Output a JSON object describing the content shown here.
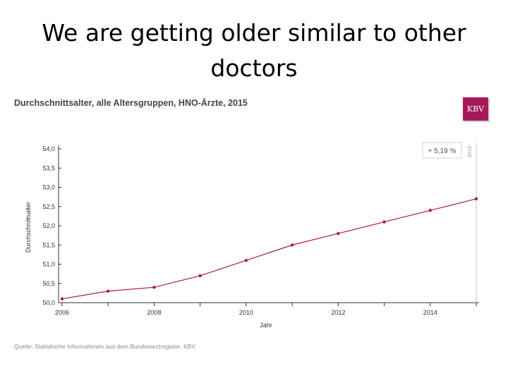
{
  "slide": {
    "title_line1": "We are getting older similar to other",
    "title_line2": "doctors"
  },
  "logo": {
    "text": "KBV",
    "color": "#a8195a"
  },
  "source": "Quelle: Statistische Informationen aus dem Bundesarztregister, KBV",
  "chart_data": {
    "type": "line",
    "title": "Durchschnittsalter, alle Altersgruppen, HNO-Ärzte, 2015",
    "xlabel": "Jahr",
    "ylabel": "Durchschnittsalter",
    "x": [
      2006,
      2007,
      2008,
      2009,
      2010,
      2011,
      2012,
      2013,
      2014,
      2015
    ],
    "series": [
      {
        "name": "Durchschnittsalter",
        "values": [
          50.1,
          50.3,
          50.4,
          50.7,
          51.1,
          51.5,
          51.8,
          52.1,
          52.4,
          52.7
        ]
      }
    ],
    "xlim": [
      2006,
      2015
    ],
    "ylim": [
      50.0,
      54.0
    ],
    "x_ticks": [
      "2006",
      "2008",
      "2010",
      "2012",
      "2014"
    ],
    "y_ticks": [
      "50,0",
      "50,5",
      "51,0",
      "51,5",
      "52,0",
      "52,5",
      "53,0",
      "53,5",
      "54,0"
    ],
    "change_label": "+ 5,19 %",
    "marker_year_label": "2015",
    "color": "#a8195a"
  }
}
